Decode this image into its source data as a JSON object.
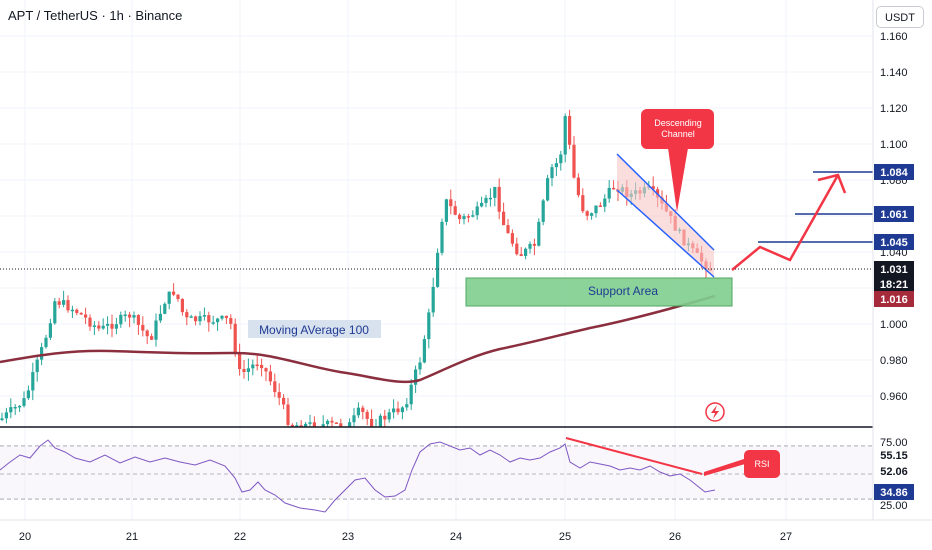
{
  "header": {
    "title": "APT / TetherUS · 1h · Binance",
    "currency": "USDT"
  },
  "price_axis": {
    "ticks": [
      "1.160",
      "1.140",
      "1.120",
      "1.100",
      "1.080",
      "1.060",
      "1.040",
      "1.020",
      "1.000",
      "0.980",
      "0.960"
    ],
    "labels": [
      {
        "text": "1.084",
        "bg": "#1f3a93",
        "color": "#ffffff"
      },
      {
        "text": "1.061",
        "bg": "#1f3a93",
        "color": "#ffffff"
      },
      {
        "text": "1.045",
        "bg": "#1f3a93",
        "color": "#ffffff"
      },
      {
        "text": "1.031",
        "bg": "#131722",
        "color": "#ffffff"
      },
      {
        "text": "18:21",
        "bg": "#131722",
        "color": "#ffffff"
      },
      {
        "text": "1.016",
        "bg": "#a52a3c",
        "color": "#ffffff"
      }
    ]
  },
  "rsi_axis": {
    "ticks": [
      "75.00",
      "25.00"
    ],
    "labels": [
      {
        "text": "55.15",
        "bg": "#ffffff",
        "color": "#131722"
      },
      {
        "text": "52.06",
        "bg": "#ffffff",
        "color": "#131722"
      },
      {
        "text": "34.86",
        "bg": "#1f3a93",
        "color": "#ffffff"
      }
    ]
  },
  "time_axis": {
    "ticks": [
      "20",
      "21",
      "22",
      "23",
      "24",
      "25",
      "26",
      "27"
    ]
  },
  "annotations": {
    "moving_average": "Moving AVerage 100",
    "support_area": "Support Area",
    "descending_channel_line1": "Descending",
    "descending_channel_line2": "Channel",
    "rsi": "RSI"
  },
  "colors": {
    "up": "#26a69a",
    "down": "#ef5350",
    "ma": "#8b2f3f",
    "accent_red": "#f23645",
    "support": "#7fcf8f",
    "channel": "#1f3a93"
  }
}
